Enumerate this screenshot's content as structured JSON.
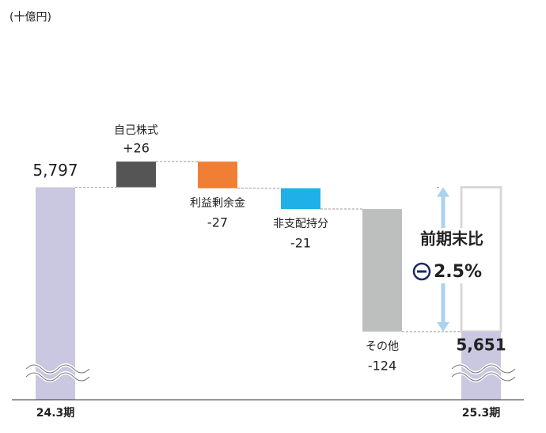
{
  "chart_data": {
    "type": "waterfall",
    "unit_label": "(十億円)",
    "categories": [
      "24.3期",
      "自己株式",
      "利益剰余金",
      "非支配持分",
      "その他",
      "25.3期"
    ],
    "measure": [
      "absolute",
      "relative",
      "relative",
      "relative",
      "relative",
      "total"
    ],
    "values": [
      5797,
      26,
      -27,
      -21,
      -124,
      5651
    ],
    "value_labels": [
      "5,797",
      "+26",
      "-27",
      "-21",
      "-124",
      "5,651"
    ],
    "colors": [
      "#cac7e1",
      "#555555",
      "#f07f35",
      "#1fb0e8",
      "#bdbebe",
      "#cac7e1"
    ],
    "ylim": [
      5582,
      5900
    ],
    "axis_break": true,
    "annotation": {
      "label": "前期末比",
      "value": "2.5%",
      "color": "#1b2a6b",
      "arrow_color": "#a9d3ee"
    }
  }
}
